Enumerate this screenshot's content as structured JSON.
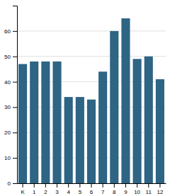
{
  "chart_data": {
    "type": "bar",
    "categories": [
      "K",
      "1",
      "2",
      "3",
      "4",
      "5",
      "6",
      "7",
      "8",
      "9",
      "10",
      "11",
      "12"
    ],
    "values": [
      47,
      48,
      48,
      48,
      34,
      34,
      33,
      44,
      60,
      65,
      49,
      50,
      41
    ],
    "color": "#2e6484",
    "ylim": [
      0,
      70
    ],
    "yticks": [
      0,
      10,
      20,
      30,
      40,
      50,
      60
    ],
    "grid": true
  }
}
